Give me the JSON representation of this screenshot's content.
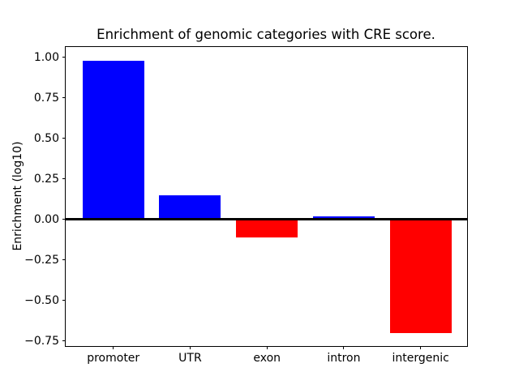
{
  "chart_data": {
    "type": "bar",
    "title": "Enrichment of genomic categories with CRE score.",
    "xlabel": "",
    "ylabel": "Enrichment (log10)",
    "categories": [
      "promoter",
      "UTR",
      "exon",
      "intron",
      "intergenic"
    ],
    "values": [
      0.98,
      0.15,
      -0.11,
      0.02,
      -0.7
    ],
    "y_ticks": [
      1.0,
      0.75,
      0.5,
      0.25,
      0.0,
      -0.25,
      -0.5,
      -0.75
    ],
    "y_tick_labels": [
      "1.00",
      "0.75",
      "0.50",
      "0.25",
      "0.00",
      "−0.25",
      "−0.50",
      "−0.75"
    ],
    "ylim": [
      -0.78,
      1.06
    ],
    "grid": false,
    "zero_line": true,
    "legend": null,
    "colors": {
      "positive_bar": "#0000ff",
      "negative_bar": "#ff0000",
      "axis": "#000000",
      "background": "#ffffff"
    }
  }
}
